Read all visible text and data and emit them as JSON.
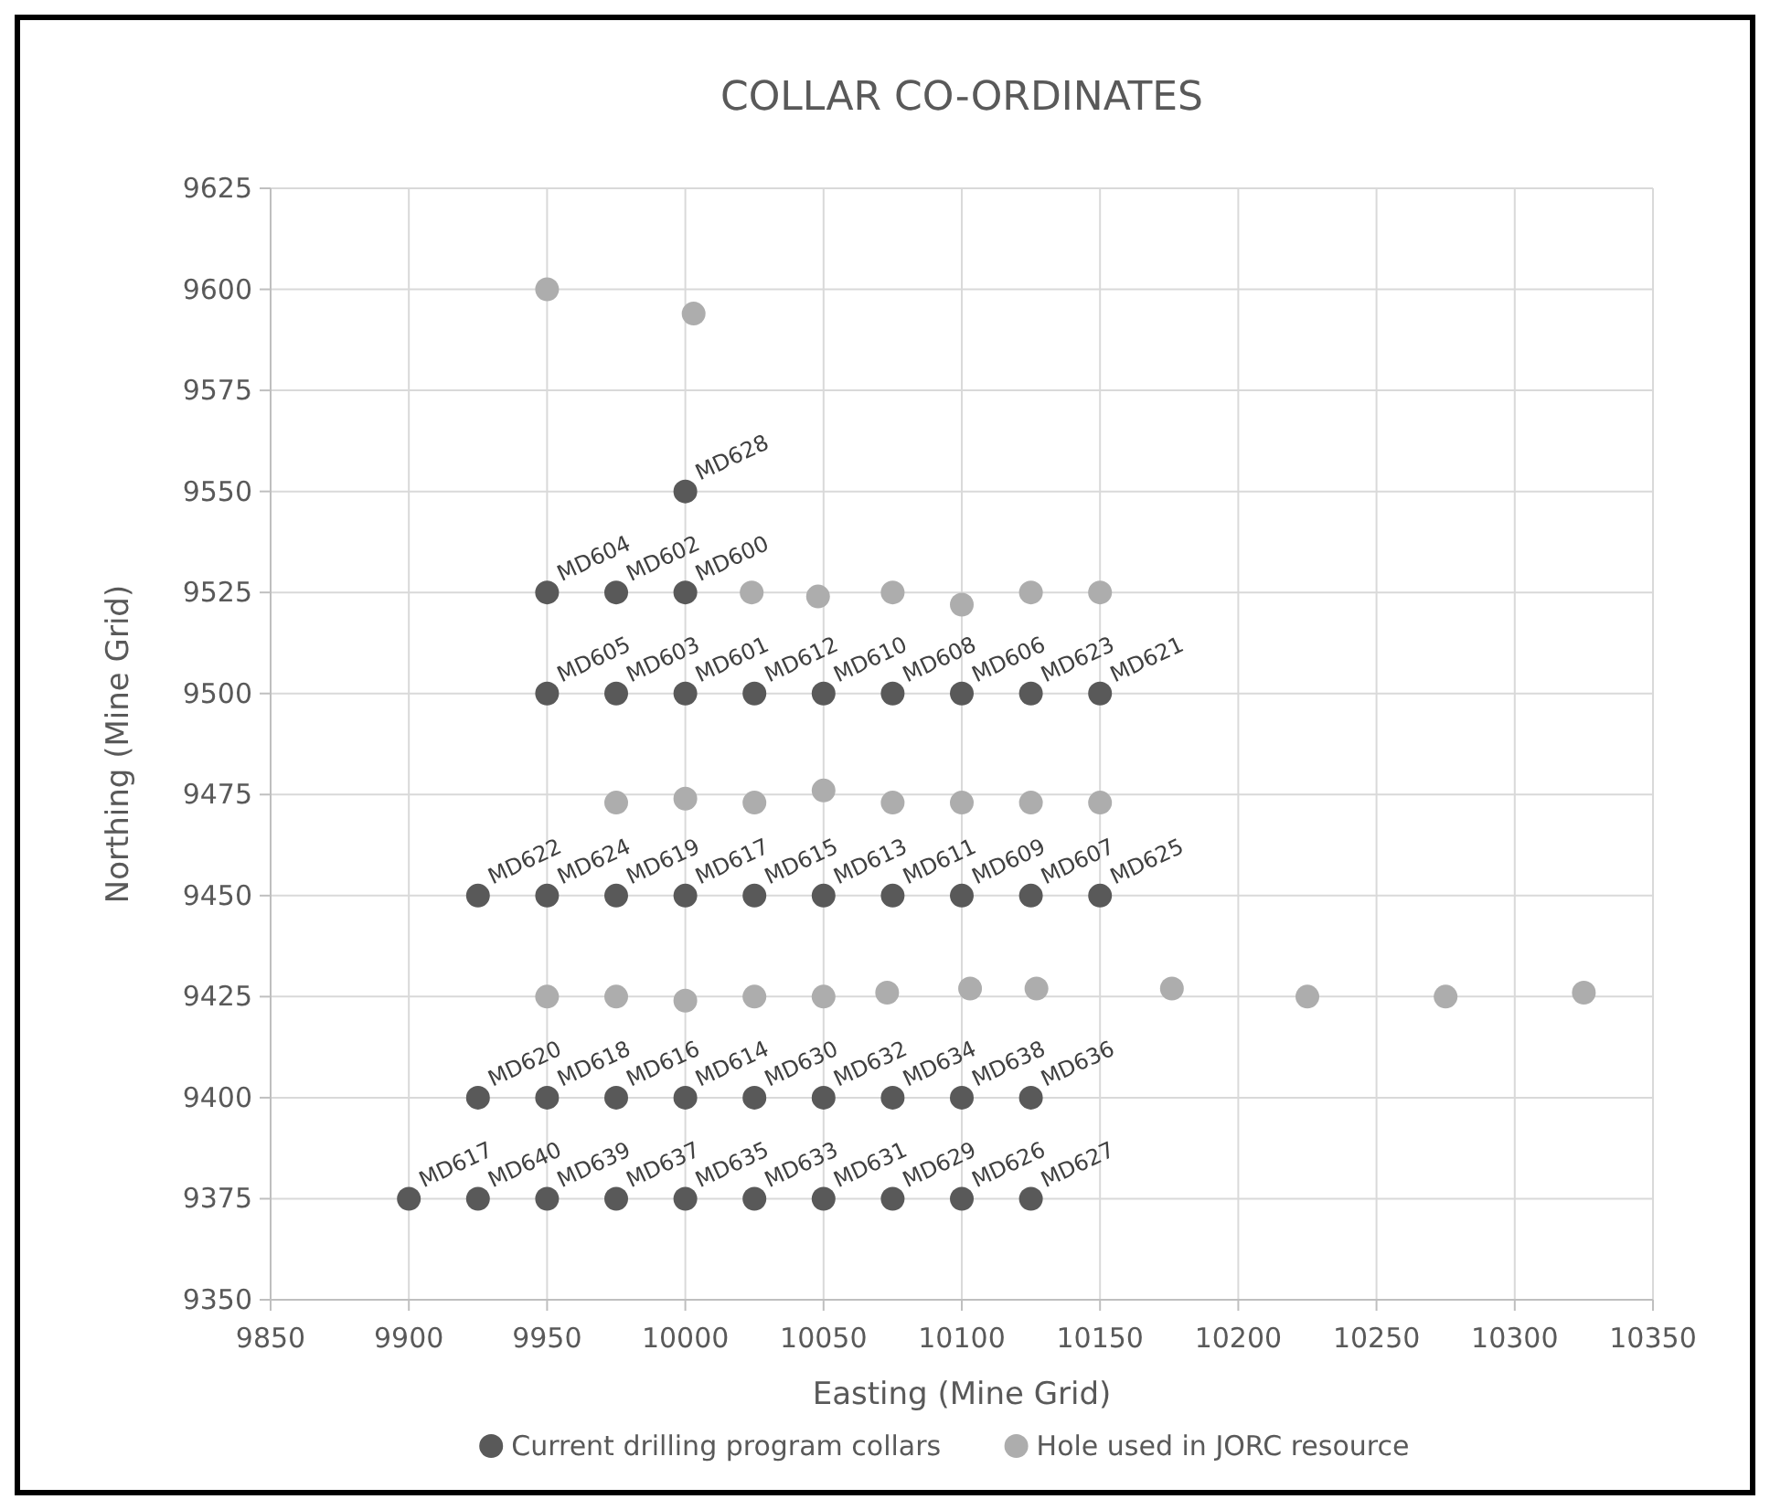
{
  "chart_data": {
    "type": "scatter",
    "title": "COLLAR CO-ORDINATES",
    "xlabel": "Easting (Mine Grid)",
    "ylabel": "Northing (Mine Grid)",
    "xlim": [
      9850,
      10350
    ],
    "xticks": [
      9850,
      9900,
      9950,
      10000,
      10050,
      10100,
      10150,
      10200,
      10250,
      10300,
      10350
    ],
    "ylim": [
      9350,
      9625
    ],
    "yticks": [
      9350,
      9375,
      9400,
      9425,
      9450,
      9475,
      9500,
      9525,
      9550,
      9575,
      9600,
      9625
    ],
    "grid": true,
    "legend": "bottom",
    "marker": "circle",
    "series": [
      {
        "name": "Current drilling program collars",
        "color": "#595959",
        "x": [
          10000,
          9950,
          9975,
          10000,
          9950,
          9975,
          10000,
          10025,
          10050,
          10075,
          10100,
          10125,
          10150,
          9925,
          9950,
          9975,
          10000,
          10025,
          10050,
          10075,
          10100,
          10125,
          10150,
          9925,
          9950,
          9975,
          10000,
          10025,
          10050,
          10075,
          10100,
          10125,
          9900,
          9925,
          9950,
          9975,
          10000,
          10025,
          10050,
          10075,
          10100,
          10125
        ],
        "values": [
          9550,
          9525,
          9525,
          9525,
          9500,
          9500,
          9500,
          9500,
          9500,
          9500,
          9500,
          9500,
          9500,
          9450,
          9450,
          9450,
          9450,
          9450,
          9450,
          9450,
          9450,
          9450,
          9450,
          9400,
          9400,
          9400,
          9400,
          9400,
          9400,
          9400,
          9400,
          9400,
          9375,
          9375,
          9375,
          9375,
          9375,
          9375,
          9375,
          9375,
          9375,
          9375
        ],
        "value_labels": [
          "MD628",
          "MD604",
          "MD602",
          "MD600",
          "MD605",
          "MD603",
          "MD601",
          "MD612",
          "MD610",
          "MD608",
          "MD606",
          "MD623",
          "MD621",
          "MD622",
          "MD624",
          "MD619",
          "MD617",
          "MD615",
          "MD613",
          "MD611",
          "MD609",
          "MD607",
          "MD625",
          "MD620",
          "MD618",
          "MD616",
          "MD614",
          "MD630",
          "MD632",
          "MD634",
          "MD638",
          "MD636",
          "MD617",
          "MD640",
          "MD639",
          "MD637",
          "MD635",
          "MD633",
          "MD631",
          "MD629",
          "MD626",
          "MD627"
        ]
      },
      {
        "name": "Hole used in JORC resource",
        "color": "#adadad",
        "x": [
          9950,
          10003,
          10024,
          10048,
          10075,
          10100,
          10125,
          10150,
          9975,
          10000,
          10025,
          10050,
          10075,
          10100,
          10125,
          10150,
          9950,
          9975,
          10000,
          10025,
          10050,
          10073,
          10103,
          10127,
          10176,
          10225,
          10275,
          10325
        ],
        "values": [
          9600,
          9594,
          9525,
          9524,
          9525,
          9522,
          9525,
          9525,
          9473,
          9474,
          9473,
          9476,
          9473,
          9473,
          9473,
          9473,
          9425,
          9425,
          9424,
          9425,
          9425,
          9426,
          9427,
          9427,
          9427,
          9425,
          9425,
          9426
        ]
      }
    ]
  }
}
